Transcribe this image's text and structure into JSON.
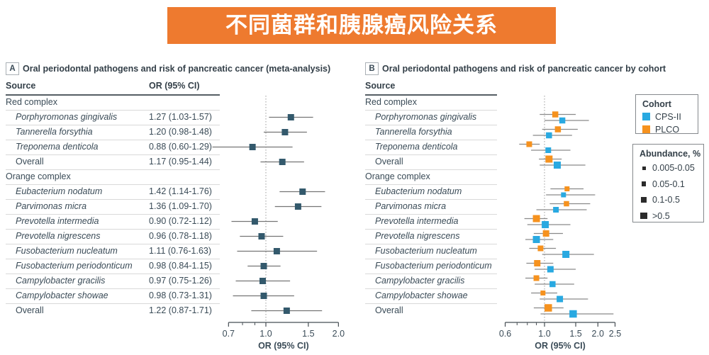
{
  "banner": {
    "title": "不同菌群和胰腺癌风险关系"
  },
  "colors": {
    "banner": "#EE7A2F",
    "cps": "#29A9E1",
    "plco": "#F6921E",
    "meta_marker": "#33596C",
    "ci_line": "#757575",
    "ci_line_b": "#8A8A8A",
    "abundance_square": "#2B2B2B",
    "refline": "#9B9B9B",
    "axis": "#464E54",
    "text": "#3A4B57"
  },
  "panels": {
    "A": {
      "tag": "A",
      "title": "Oral periodontal pathogens and risk of pancreatic cancer (meta-analysis)",
      "col_source": "Source",
      "col_or": "OR (95% CI)"
    },
    "B": {
      "tag": "B",
      "title": "Oral periodontal pathogens and risk of pancreatic cancer by cohort",
      "col_source": "Source"
    }
  },
  "legend_cohort": {
    "title": "Cohort",
    "items": [
      {
        "label": "CPS-II",
        "color_key": "cps"
      },
      {
        "label": "PLCO",
        "color_key": "plco"
      }
    ]
  },
  "legend_abundance": {
    "title": "Abundance, %",
    "items": [
      {
        "label": "0.005-0.05",
        "size": 5
      },
      {
        "label": "0.05-0.1",
        "size": 6.5
      },
      {
        "label": "0.1-0.5",
        "size": 8
      },
      {
        "label": ">0.5",
        "size": 9.5
      }
    ]
  },
  "chart_data": {
    "type": "forest",
    "axes": {
      "A": {
        "xlabel": "OR (95% CI)",
        "scale": "log",
        "tick_labels": [
          "0.7",
          "1.0",
          "1.5",
          "2.0"
        ],
        "minor_ticks": [
          0.8,
          0.9
        ],
        "refline": 1.0,
        "xlim": [
          0.58,
          2.05
        ]
      },
      "B": {
        "xlabel": "OR (95% CI)",
        "scale": "log",
        "tick_labels": [
          "0.6",
          "1.0",
          "1.5",
          "2.0",
          "2.5"
        ],
        "minor_ticks": [
          0.7,
          0.8,
          0.9
        ],
        "refline": 1.0,
        "xlim": [
          0.58,
          2.6
        ]
      }
    },
    "cohort_draw_order": [
      "plco",
      "cps"
    ],
    "rows": [
      {
        "type": "section",
        "label": "Red complex"
      },
      {
        "type": "item",
        "italic": true,
        "label": "Porphyromonas gingivalis",
        "meta": {
          "text": "1.27 (1.03-1.57)",
          "or": 1.27,
          "lo": 1.03,
          "hi": 1.57
        },
        "cohort": {
          "plco": {
            "or": 1.15,
            "lo": 0.94,
            "hi": 1.5,
            "size": 8.5
          },
          "cps": {
            "or": 1.26,
            "lo": 1.0,
            "hi": 1.78,
            "size": 8.5
          }
        }
      },
      {
        "type": "item",
        "italic": true,
        "label": "Tannerella forsythia",
        "meta": {
          "text": "1.20 (0.98-1.48)",
          "or": 1.2,
          "lo": 0.98,
          "hi": 1.48
        },
        "cohort": {
          "plco": {
            "or": 1.19,
            "lo": 0.97,
            "hi": 1.54,
            "size": 8.5
          },
          "cps": {
            "or": 1.06,
            "lo": 0.86,
            "hi": 1.43,
            "size": 8.5
          }
        }
      },
      {
        "type": "item",
        "italic": true,
        "label": "Treponema denticola",
        "meta": {
          "text": "0.88 (0.60-1.29)",
          "or": 0.88,
          "lo": 0.6,
          "hi": 1.29
        },
        "cohort": {
          "plco": {
            "or": 0.82,
            "lo": 0.72,
            "hi": 0.94,
            "size": 8
          },
          "cps": {
            "or": 1.05,
            "lo": 0.84,
            "hi": 1.4,
            "size": 8
          }
        }
      },
      {
        "type": "item",
        "italic": false,
        "label": "Overall",
        "meta": {
          "text": "1.17 (0.95-1.44)",
          "or": 1.17,
          "lo": 0.95,
          "hi": 1.44
        },
        "cohort": {
          "plco": {
            "or": 1.06,
            "lo": 0.93,
            "hi": 1.25,
            "size": 10
          },
          "cps": {
            "or": 1.18,
            "lo": 0.94,
            "hi": 1.7,
            "size": 10
          }
        }
      },
      {
        "type": "section",
        "label": "Orange complex"
      },
      {
        "type": "item",
        "italic": true,
        "label": "Eubacterium nodatum",
        "meta": {
          "text": "1.42 (1.14-1.76)",
          "or": 1.42,
          "lo": 1.14,
          "hi": 1.76
        },
        "cohort": {
          "plco": {
            "or": 1.34,
            "lo": 1.08,
            "hi": 1.66,
            "size": 7
          },
          "cps": {
            "or": 1.28,
            "lo": 1.02,
            "hi": 1.93,
            "size": 7
          }
        }
      },
      {
        "type": "item",
        "italic": true,
        "label": "Parvimonas micra",
        "meta": {
          "text": "1.36 (1.09-1.70)",
          "or": 1.36,
          "lo": 1.09,
          "hi": 1.7
        },
        "cohort": {
          "plco": {
            "or": 1.33,
            "lo": 1.07,
            "hi": 1.81,
            "size": 7.5
          },
          "cps": {
            "or": 1.16,
            "lo": 0.9,
            "hi": 1.73,
            "size": 8
          }
        }
      },
      {
        "type": "item",
        "italic": true,
        "label": "Prevotella intermedia",
        "meta": {
          "text": "0.90 (0.72-1.12)",
          "or": 0.9,
          "lo": 0.72,
          "hi": 1.12
        },
        "cohort": {
          "plco": {
            "or": 0.9,
            "lo": 0.77,
            "hi": 1.04,
            "size": 10
          },
          "cps": {
            "or": 1.01,
            "lo": 0.8,
            "hi": 1.4,
            "size": 10
          }
        }
      },
      {
        "type": "item",
        "italic": true,
        "label": "Prevotella nigrescens",
        "meta": {
          "text": "0.96 (0.78-1.18)",
          "or": 0.96,
          "lo": 0.78,
          "hi": 1.18
        },
        "cohort": {
          "plco": {
            "or": 1.02,
            "lo": 0.87,
            "hi": 1.27,
            "size": 9
          },
          "cps": {
            "or": 0.9,
            "lo": 0.78,
            "hi": 1.12,
            "size": 10
          }
        }
      },
      {
        "type": "item",
        "italic": true,
        "label": "Fusobacterium nucleatum",
        "meta": {
          "text": "1.11 (0.76-1.63)",
          "or": 1.11,
          "lo": 0.76,
          "hi": 1.63
        },
        "cohort": {
          "plco": {
            "or": 0.95,
            "lo": 0.82,
            "hi": 1.16,
            "size": 8
          },
          "cps": {
            "or": 1.32,
            "lo": 0.97,
            "hi": 1.9,
            "size": 10
          }
        }
      },
      {
        "type": "item",
        "italic": true,
        "label": "Fusobacterium periodonticum",
        "meta": {
          "text": "0.98 (0.84-1.15)",
          "or": 0.98,
          "lo": 0.84,
          "hi": 1.15
        },
        "cohort": {
          "plco": {
            "or": 0.91,
            "lo": 0.79,
            "hi": 1.12,
            "size": 9
          },
          "cps": {
            "or": 1.08,
            "lo": 0.88,
            "hi": 1.5,
            "size": 9
          }
        }
      },
      {
        "type": "item",
        "italic": true,
        "label": "Campylobacter gracilis",
        "meta": {
          "text": "0.97 (0.75-1.26)",
          "or": 0.97,
          "lo": 0.75,
          "hi": 1.26
        },
        "cohort": {
          "plco": {
            "or": 0.9,
            "lo": 0.78,
            "hi": 1.04,
            "size": 8
          },
          "cps": {
            "or": 1.11,
            "lo": 0.88,
            "hi": 1.47,
            "size": 8.5
          }
        }
      },
      {
        "type": "item",
        "italic": true,
        "label": "Campylobacter showae",
        "meta": {
          "text": "0.98 (0.73-1.31)",
          "or": 0.98,
          "lo": 0.73,
          "hi": 1.31
        },
        "cohort": {
          "plco": {
            "or": 0.98,
            "lo": 0.84,
            "hi": 1.18,
            "size": 7
          },
          "cps": {
            "or": 1.22,
            "lo": 0.94,
            "hi": 1.76,
            "size": 9
          }
        }
      },
      {
        "type": "item",
        "italic": false,
        "label": "Overall",
        "meta": {
          "text": "1.22 (0.87-1.71)",
          "or": 1.22,
          "lo": 0.87,
          "hi": 1.71
        },
        "cohort": {
          "plco": {
            "or": 1.05,
            "lo": 0.87,
            "hi": 1.28,
            "size": 10.5
          },
          "cps": {
            "or": 1.45,
            "lo": 0.95,
            "hi": 2.45,
            "size": 10.5
          }
        }
      }
    ]
  }
}
